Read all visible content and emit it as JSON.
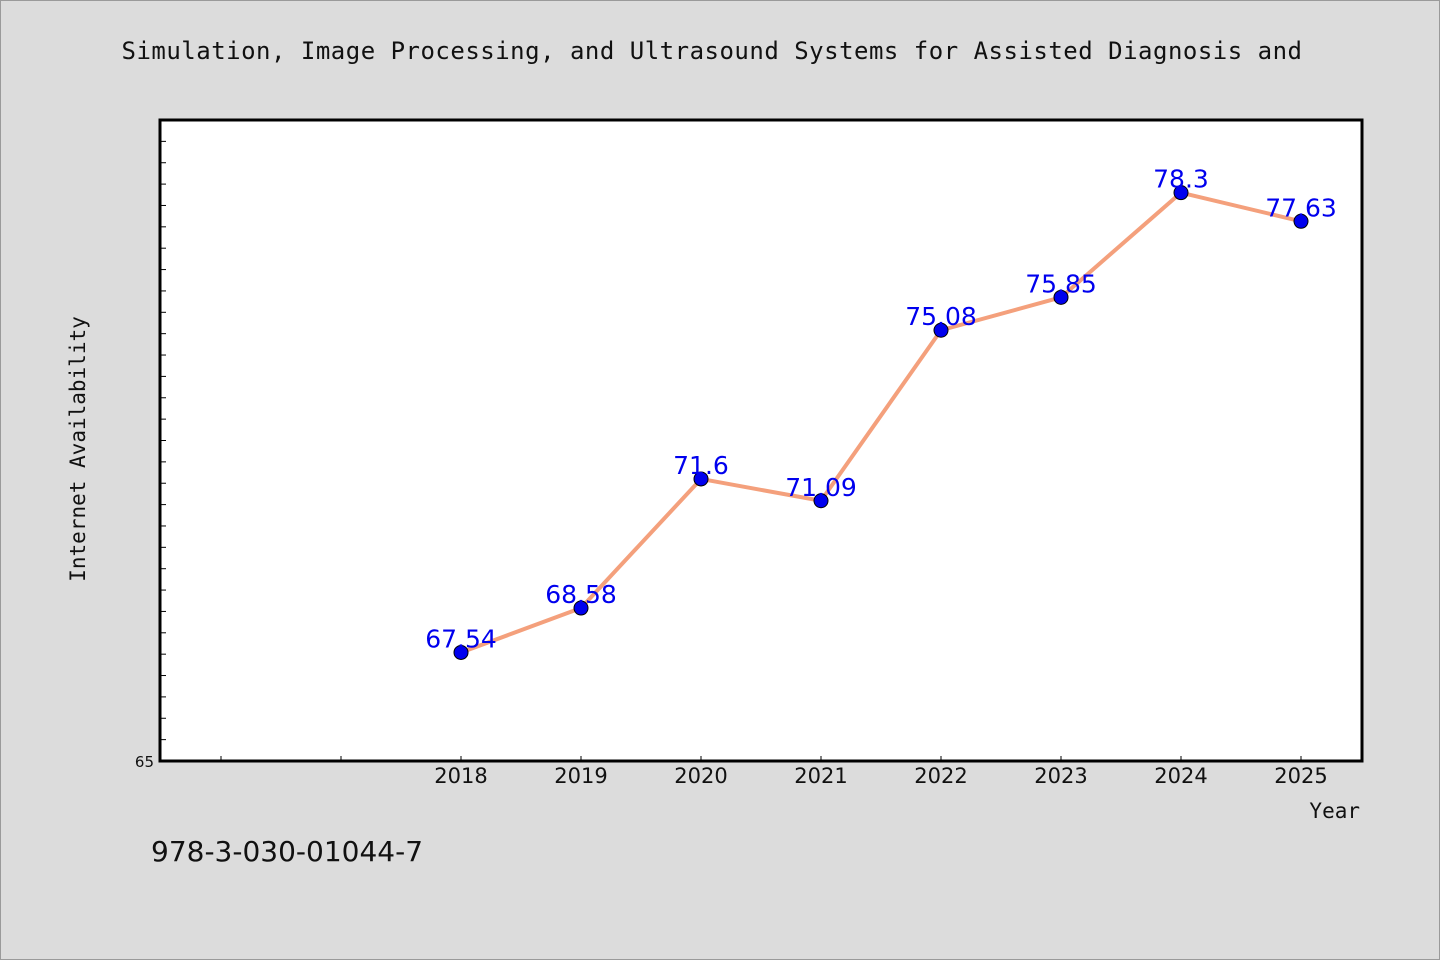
{
  "chart_data": {
    "type": "line",
    "title": "Simulation, Image Processing, and Ultrasound Systems for Assisted Diagnosis and",
    "xlabel": "Year",
    "ylabel": "Internet Availability",
    "categories": [
      "2018",
      "2019",
      "2020",
      "2021",
      "2022",
      "2023",
      "2024",
      "2025"
    ],
    "series": [
      {
        "values": [
          67.54,
          68.58,
          71.6,
          71.09,
          75.08,
          75.85,
          78.3,
          77.63
        ],
        "labels": [
          "67.54",
          "68.58",
          "71.6",
          "71.09",
          "75.08",
          "75.85",
          "78.3",
          "77.63"
        ]
      }
    ],
    "y_tick_labels": [
      "65"
    ],
    "ylim": [
      65,
      80
    ],
    "grid": false,
    "line_color": "#f4a07c",
    "marker_color": "#0000ee",
    "label_color": "#0000ee",
    "plot_background": "#ffffff",
    "page_background": "#dcdcdc"
  },
  "footnote": "978-3-030-01044-7"
}
